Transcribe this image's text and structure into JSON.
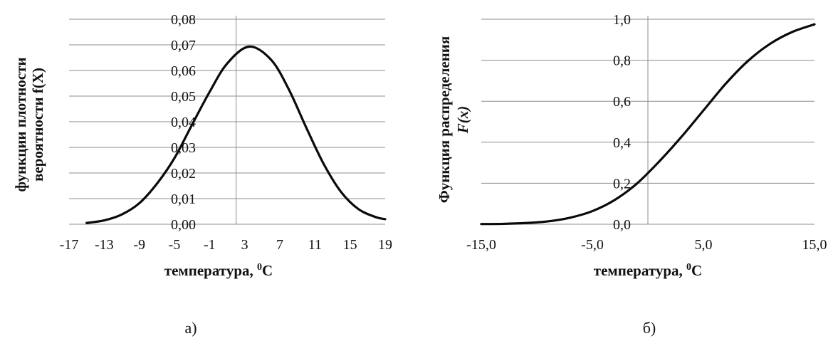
{
  "chart_data": [
    {
      "type": "line",
      "panel_label": "а)",
      "title": "",
      "ylabel_lines": [
        "функции плотности",
        "вероятности f(X)"
      ],
      "xlabel": "температура, ",
      "xlabel_sup": "0",
      "xlabel_suffix": "С",
      "xlim": [
        -17,
        19
      ],
      "ylim": [
        0,
        0.08
      ],
      "xticks": [
        -17,
        -13,
        -9,
        -5,
        -1,
        3,
        7,
        11,
        15,
        19
      ],
      "xtick_labels": [
        "-17",
        "-13",
        "-9",
        "-5",
        "-1",
        "3",
        "7",
        "11",
        "15",
        "19"
      ],
      "yticks": [
        0,
        0.01,
        0.02,
        0.03,
        0.04,
        0.05,
        0.06,
        0.07,
        0.08
      ],
      "ytick_labels": [
        "0,00",
        "0,01",
        "0,02",
        "0,03",
        "0,04",
        "0,05",
        "0,06",
        "0,07",
        "0,08"
      ],
      "grid": "horizontal",
      "series": [
        {
          "x": [
            -15,
            -13,
            -11,
            -9,
            -7,
            -5,
            -3,
            -1,
            1,
            3.5,
            6,
            8,
            10,
            12,
            14,
            16,
            18,
            19
          ],
          "y": [
            0.0005,
            0.0015,
            0.0038,
            0.0082,
            0.0158,
            0.0258,
            0.0388,
            0.0516,
            0.0627,
            0.0693,
            0.0642,
            0.0528,
            0.0378,
            0.0235,
            0.0125,
            0.0058,
            0.0027,
            0.002
          ]
        }
      ]
    },
    {
      "type": "line",
      "panel_label": "б)",
      "title": "",
      "ylabel_lines": [
        "Функция  распределения",
        "F(x)"
      ],
      "xlabel": "температура, ",
      "xlabel_sup": "0",
      "xlabel_suffix": "С",
      "xlim": [
        -15,
        15
      ],
      "ylim": [
        0,
        1
      ],
      "xticks": [
        -15,
        -5,
        5,
        15
      ],
      "xtick_labels": [
        "-15,0",
        "-5,0",
        "5,0",
        "15,0"
      ],
      "yticks": [
        0,
        0.2,
        0.4,
        0.6,
        0.8,
        1.0
      ],
      "ytick_labels": [
        "0,0",
        "0,2",
        "0,4",
        "0,6",
        "0,8",
        "1,0"
      ],
      "grid": "horizontal",
      "series": [
        {
          "x": [
            -15,
            -13,
            -11,
            -9,
            -7,
            -5,
            -3,
            -1,
            1,
            3,
            5,
            7,
            9,
            11,
            13,
            15
          ],
          "y": [
            0.001,
            0.002,
            0.006,
            0.014,
            0.032,
            0.064,
            0.118,
            0.198,
            0.305,
            0.425,
            0.555,
            0.685,
            0.796,
            0.88,
            0.938,
            0.975
          ]
        }
      ]
    }
  ]
}
